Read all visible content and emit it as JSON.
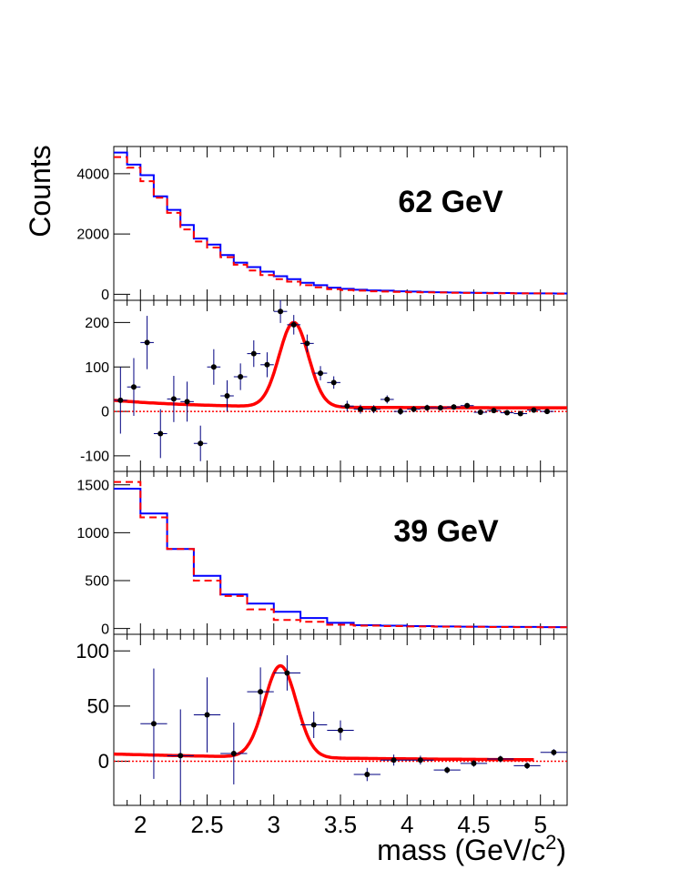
{
  "figure": {
    "ylabel": "Counts",
    "xlabel_main": "mass (GeV/c",
    "xlabel_sup": "2",
    "xlabel_close": ")",
    "x_ticks": [
      "2",
      "2.5",
      "3",
      "3.5",
      "4",
      "4.5",
      "5"
    ],
    "xlim": [
      1.8,
      5.2
    ],
    "colors": {
      "blue": "#0000ff",
      "red": "#ff0000",
      "points": "#000000",
      "errorbars": "#000080"
    }
  },
  "chart_data": [
    {
      "type": "histogram",
      "panel": "62gev-counts",
      "annotation": "62 GeV",
      "ylim": [
        -200,
        4900
      ],
      "y_ticks": [
        0,
        2000,
        4000
      ],
      "bin_edges": [
        1.8,
        1.9,
        2.0,
        2.1,
        2.2,
        2.3,
        2.4,
        2.5,
        2.6,
        2.7,
        2.8,
        2.9,
        3.0,
        3.1,
        3.2,
        3.3,
        3.4,
        3.5,
        3.6,
        3.7,
        3.8,
        3.9,
        4.0,
        4.1,
        4.2,
        4.3,
        4.4,
        4.5,
        4.6,
        4.7,
        4.8,
        4.9,
        5.0,
        5.1,
        5.2
      ],
      "series": [
        {
          "style": "solid-blue",
          "values": [
            4700,
            4300,
            3950,
            3250,
            2800,
            2300,
            1850,
            1650,
            1300,
            1050,
            900,
            750,
            600,
            500,
            380,
            300,
            220,
            180,
            150,
            130,
            120,
            100,
            90,
            80,
            70,
            60,
            55,
            50,
            45,
            40,
            35,
            30,
            28,
            25
          ]
        },
        {
          "style": "dashed-red",
          "values": [
            4550,
            4200,
            3750,
            3200,
            2700,
            2150,
            1750,
            1550,
            1230,
            980,
            790,
            640,
            500,
            420,
            300,
            230,
            170,
            140,
            120,
            100,
            90,
            80,
            70,
            65,
            60,
            50,
            45,
            40,
            35,
            32,
            30,
            28,
            25,
            20
          ]
        }
      ]
    },
    {
      "type": "scatter",
      "panel": "62gev-signal",
      "ylim": [
        -135,
        250
      ],
      "y_ticks": [
        -100,
        0,
        100,
        200
      ],
      "points": [
        {
          "x": 1.85,
          "y": 25,
          "err": 75
        },
        {
          "x": 1.95,
          "y": 55,
          "err": 65
        },
        {
          "x": 2.05,
          "y": 155,
          "err": 60
        },
        {
          "x": 2.15,
          "y": -50,
          "err": 55
        },
        {
          "x": 2.25,
          "y": 28,
          "err": 52
        },
        {
          "x": 2.35,
          "y": 22,
          "err": 45
        },
        {
          "x": 2.45,
          "y": -72,
          "err": 40
        },
        {
          "x": 2.55,
          "y": 100,
          "err": 40
        },
        {
          "x": 2.65,
          "y": 35,
          "err": 35
        },
        {
          "x": 2.75,
          "y": 78,
          "err": 30
        },
        {
          "x": 2.85,
          "y": 130,
          "err": 30
        },
        {
          "x": 2.95,
          "y": 105,
          "err": 28
        },
        {
          "x": 3.05,
          "y": 225,
          "err": 26
        },
        {
          "x": 3.15,
          "y": 195,
          "err": 22
        },
        {
          "x": 3.25,
          "y": 153,
          "err": 20
        },
        {
          "x": 3.35,
          "y": 86,
          "err": 16
        },
        {
          "x": 3.45,
          "y": 65,
          "err": 14
        },
        {
          "x": 3.55,
          "y": 12,
          "err": 12
        },
        {
          "x": 3.65,
          "y": 5,
          "err": 10
        },
        {
          "x": 3.75,
          "y": 5,
          "err": 9
        },
        {
          "x": 3.85,
          "y": 27,
          "err": 9
        },
        {
          "x": 3.95,
          "y": 0,
          "err": 8
        },
        {
          "x": 4.05,
          "y": 5,
          "err": 7
        },
        {
          "x": 4.15,
          "y": 8,
          "err": 7
        },
        {
          "x": 4.25,
          "y": 8,
          "err": 6
        },
        {
          "x": 4.35,
          "y": 10,
          "err": 6
        },
        {
          "x": 4.45,
          "y": 13,
          "err": 6
        },
        {
          "x": 4.55,
          "y": -2,
          "err": 5
        },
        {
          "x": 4.65,
          "y": 2,
          "err": 5
        },
        {
          "x": 4.75,
          "y": -3,
          "err": 5
        },
        {
          "x": 4.85,
          "y": -5,
          "err": 5
        },
        {
          "x": 4.95,
          "y": 3,
          "err": 5
        },
        {
          "x": 5.05,
          "y": 0,
          "err": 5
        }
      ],
      "fit": {
        "peak_mean": 3.15,
        "peak_sigma": 0.11,
        "peak_amplitude": 190,
        "background_constant": 8,
        "background_amplitude": 17,
        "background_decay": 1.5
      },
      "reference_line": 0
    },
    {
      "type": "histogram",
      "panel": "39gev-counts",
      "annotation": "39 GeV",
      "ylim": [
        -60,
        1640
      ],
      "y_ticks": [
        0,
        500,
        1000,
        1500
      ],
      "bin_edges": [
        1.8,
        2.0,
        2.2,
        2.4,
        2.6,
        2.8,
        3.0,
        3.2,
        3.4,
        3.6,
        3.8,
        4.0,
        4.2,
        4.4,
        4.6,
        4.8,
        5.0,
        5.2
      ],
      "series": [
        {
          "style": "solid-blue",
          "values": [
            1460,
            1200,
            830,
            550,
            355,
            260,
            175,
            110,
            60,
            35,
            30,
            25,
            22,
            20,
            18,
            17,
            15
          ]
        },
        {
          "style": "dashed-red",
          "values": [
            1530,
            1160,
            830,
            500,
            340,
            200,
            90,
            70,
            40,
            30,
            25,
            22,
            20,
            18,
            16,
            15,
            13
          ]
        }
      ]
    },
    {
      "type": "scatter",
      "panel": "39gev-signal",
      "ylim": [
        -40,
        115
      ],
      "y_ticks": [
        0,
        50,
        100
      ],
      "points": [
        {
          "x": 2.1,
          "y": 34,
          "err": 50
        },
        {
          "x": 2.3,
          "y": 5,
          "err": 42
        },
        {
          "x": 2.5,
          "y": 42,
          "err": 34
        },
        {
          "x": 2.7,
          "y": 7,
          "err": 28
        },
        {
          "x": 2.9,
          "y": 63,
          "err": 22
        },
        {
          "x": 3.1,
          "y": 80,
          "err": 16
        },
        {
          "x": 3.3,
          "y": 33,
          "err": 12
        },
        {
          "x": 3.5,
          "y": 28,
          "err": 9
        },
        {
          "x": 3.7,
          "y": -12,
          "err": 6
        },
        {
          "x": 3.9,
          "y": 1,
          "err": 5
        },
        {
          "x": 4.1,
          "y": 1,
          "err": 4
        },
        {
          "x": 4.3,
          "y": -8,
          "err": 3
        },
        {
          "x": 4.5,
          "y": -2,
          "err": 3
        },
        {
          "x": 4.7,
          "y": 2,
          "err": 3
        },
        {
          "x": 4.9,
          "y": -4,
          "err": 3
        },
        {
          "x": 5.1,
          "y": 8,
          "err": 3
        }
      ],
      "fit": {
        "peak_mean": 3.05,
        "peak_sigma": 0.12,
        "peak_amplitude": 83,
        "background_constant": 0,
        "background_amplitude": 6.5,
        "background_decay": 0.5
      },
      "reference_line": 0
    }
  ]
}
